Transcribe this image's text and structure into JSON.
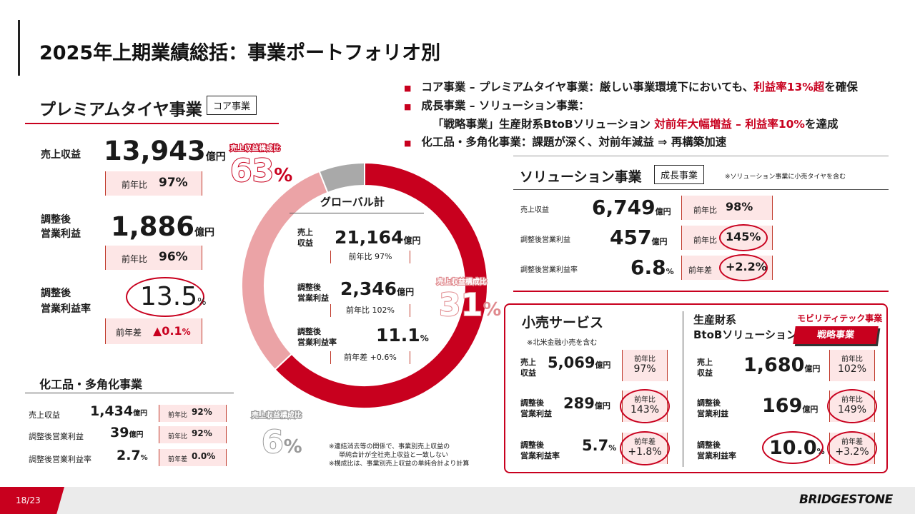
{
  "slide": {
    "title": "2025年上期業績総括：事業ポートフォリオ別",
    "page": "18/23",
    "logo_text": "BRIDGESTONE"
  },
  "bullets": [
    {
      "text": "コア事業 – プレミアムタイヤ事業：厳しい事業環境下においても、",
      "highlight": "利益率13%超",
      "suffix": "を確保"
    },
    {
      "text": "成長事業 – ソリューション事業："
    },
    {
      "text": "「戦略事業」生産財系BtoBソリューション ",
      "highlight": "対前年大幅増益 – 利益率10%",
      "suffix": "を達成"
    },
    {
      "text": "化工品・多角化事業：課題が深く、対前年減益 ⇒ 再構築加速"
    }
  ],
  "premium": {
    "title": "プレミアムタイヤ事業",
    "tag": "コア事業",
    "sales_label": "売上収益",
    "sales_value": "13,943",
    "sales_unit": "億円",
    "sales_yoy_label": "前年比",
    "sales_yoy": "97%",
    "op_label1": "調整後",
    "op_label2": "営業利益",
    "op_value": "1,886",
    "op_unit": "億円",
    "op_yoy_label": "前年比",
    "op_yoy": "96%",
    "margin_label1": "調整後",
    "margin_label2": "営業利益率",
    "margin_value": "13.5",
    "margin_unit": "%",
    "margin_diff_label": "前年差",
    "margin_diff": "▲0.1",
    "margin_diff_unit": "%"
  },
  "chemical": {
    "title": "化工品・多角化事業",
    "rows": [
      {
        "label": "売上収益",
        "value": "1,434",
        "unit": "億円",
        "cmp_label": "前年比",
        "cmp": "92%"
      },
      {
        "label": "調整後営業利益",
        "value": "39",
        "unit": "億円",
        "cmp_label": "前年比",
        "cmp": "92%"
      },
      {
        "label": "調整後営業利益率",
        "value": "2.7",
        "unit": "%",
        "cmp_label": "前年差",
        "cmp": "0.0%"
      }
    ]
  },
  "donut": {
    "segments": [
      {
        "name": "premium",
        "share": 63,
        "color": "#c8001e"
      },
      {
        "name": "solution",
        "share": 31,
        "color": "#eba3a6"
      },
      {
        "name": "chemical",
        "share": 6,
        "color": "#a9a9a9"
      }
    ],
    "label_caption": "売上収益構成比",
    "premium_pct": "63",
    "solution_pct": "31",
    "chemical_pct": "6",
    "pct_sign": "%",
    "center_title": "グローバル計",
    "sales_label1": "売上",
    "sales_label2": "収益",
    "sales_value": "21,164",
    "sales_unit": "億円",
    "sales_cmp": "前年比 97%",
    "op_label1": "調整後",
    "op_label2": "営業利益",
    "op_value": "2,346",
    "op_unit": "億円",
    "op_cmp": "前年比 102%",
    "margin_label1": "調整後",
    "margin_label2": "営業利益率",
    "margin_value": "11.1",
    "margin_unit": "%",
    "margin_cmp": "前年差 +0.6%"
  },
  "notes": [
    "※連結消去等の関係で、事業別売上収益の",
    "単純合計が全社売上収益と一致しない",
    "※構成比は、事業別売上収益の単純合計より計算"
  ],
  "solution": {
    "title": "ソリューション事業",
    "tag": "成長事業",
    "note": "※ソリューション事業に小売タイヤを含む",
    "rows": [
      {
        "label": "売上収益",
        "value": "6,749",
        "unit": "億円",
        "cmp_label": "前年比",
        "cmp": "98%"
      },
      {
        "label": "調整後営業利益",
        "value": "457",
        "unit": "億円",
        "cmp_label": "前年比",
        "cmp": "145%"
      },
      {
        "label": "調整後営業利益率",
        "value": "6.8",
        "unit": "%",
        "cmp_label": "前年差",
        "cmp": "+2.2%"
      }
    ]
  },
  "retail": {
    "title": "小売サービス",
    "note": "※北米金融小売を含む",
    "rows": [
      {
        "label1": "売上",
        "label2": "収益",
        "value": "5,069",
        "unit": "億円",
        "cmp_label": "前年比",
        "cmp": "97%"
      },
      {
        "label1": "調整後",
        "label2": "営業利益",
        "value": "289",
        "unit": "億円",
        "cmp_label": "前年比",
        "cmp": "143%"
      },
      {
        "label1": "調整後",
        "label2": "営業利益率",
        "value": "5.7",
        "unit": "%",
        "cmp_label": "前年差",
        "cmp": "+1.8%"
      }
    ]
  },
  "btob": {
    "title1": "生産財系",
    "title2": "BtoBソリューション",
    "mobility": "モビリティテック事業",
    "tag": "戦略事業",
    "rows": [
      {
        "label1": "売上",
        "label2": "収益",
        "value": "1,680",
        "unit": "億円",
        "cmp_label": "前年比",
        "cmp": "102%"
      },
      {
        "label1": "調整後",
        "label2": "営業利益",
        "value": "169",
        "unit": "億円",
        "cmp_label": "前年比",
        "cmp": "149%"
      },
      {
        "label1": "調整後",
        "label2": "営業利益率",
        "value": "10.0",
        "unit": "%",
        "cmp_label": "前年差",
        "cmp": "+3.2%"
      }
    ]
  }
}
